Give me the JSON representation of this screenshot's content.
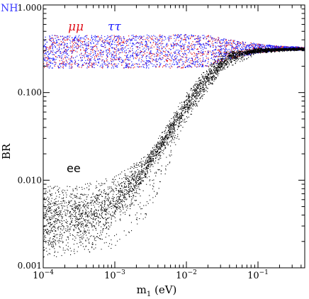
{
  "chart_data": {
    "type": "scatter",
    "corner_label": "NH",
    "corner_label_color": "#3a3aff",
    "xlabel_main": "m",
    "xlabel_sub": "1",
    "xlabel_unit": " (eV)",
    "ylabel": "BR",
    "x_scale": "log",
    "y_scale": "log",
    "xlim": [
      0.0001,
      0.45
    ],
    "ylim": [
      0.001,
      1.0
    ],
    "x_ticks": [
      {
        "value": 0.0001,
        "base": "10",
        "exp": "−4"
      },
      {
        "value": 0.001,
        "base": "10",
        "exp": "−3"
      },
      {
        "value": 0.01,
        "base": "10",
        "exp": "−2"
      },
      {
        "value": 0.1,
        "base": "10",
        "exp": "−1"
      }
    ],
    "y_ticks": [
      {
        "value": 0.001,
        "label": "0.001"
      },
      {
        "value": 0.01,
        "label": "0.010"
      },
      {
        "value": 0.1,
        "label": "0.100"
      },
      {
        "value": 1.0,
        "label": "1.000"
      }
    ],
    "series": [
      {
        "name": "μμ",
        "color": "#e0141e",
        "band_min": [
          [
            0.0001,
            0.19
          ],
          [
            0.001,
            0.19
          ],
          [
            0.01,
            0.19
          ],
          [
            0.02,
            0.2
          ],
          [
            0.05,
            0.25
          ],
          [
            0.1,
            0.28
          ],
          [
            0.2,
            0.3
          ],
          [
            0.45,
            0.305
          ]
        ],
        "band_max": [
          [
            0.0001,
            0.45
          ],
          [
            0.001,
            0.45
          ],
          [
            0.01,
            0.46
          ],
          [
            0.02,
            0.45
          ],
          [
            0.05,
            0.39
          ],
          [
            0.1,
            0.36
          ],
          [
            0.2,
            0.34
          ],
          [
            0.45,
            0.33
          ]
        ]
      },
      {
        "name": "ττ",
        "color": "#1a1aff",
        "band_min": [
          [
            0.0001,
            0.19
          ],
          [
            0.001,
            0.19
          ],
          [
            0.01,
            0.19
          ],
          [
            0.02,
            0.2
          ],
          [
            0.05,
            0.25
          ],
          [
            0.1,
            0.28
          ],
          [
            0.2,
            0.3
          ],
          [
            0.45,
            0.305
          ]
        ],
        "band_max": [
          [
            0.0001,
            0.45
          ],
          [
            0.001,
            0.45
          ],
          [
            0.01,
            0.46
          ],
          [
            0.02,
            0.45
          ],
          [
            0.05,
            0.39
          ],
          [
            0.1,
            0.36
          ],
          [
            0.2,
            0.34
          ],
          [
            0.45,
            0.33
          ]
        ]
      },
      {
        "name": "ee",
        "color": "#000000",
        "center": [
          [
            0.0001,
            0.0035
          ],
          [
            0.0003,
            0.0037
          ],
          [
            0.0007,
            0.0046
          ],
          [
            0.001,
            0.0058
          ],
          [
            0.002,
            0.01
          ],
          [
            0.004,
            0.022
          ],
          [
            0.007,
            0.045
          ],
          [
            0.01,
            0.07
          ],
          [
            0.02,
            0.15
          ],
          [
            0.04,
            0.25
          ],
          [
            0.07,
            0.29
          ],
          [
            0.1,
            0.3
          ],
          [
            0.2,
            0.31
          ],
          [
            0.45,
            0.315
          ]
        ],
        "spread_min": [
          [
            0.0001,
            0.0013
          ],
          [
            0.0003,
            0.0014
          ],
          [
            0.001,
            0.0017
          ],
          [
            0.003,
            0.004
          ],
          [
            0.01,
            0.045
          ],
          [
            0.03,
            0.17
          ],
          [
            0.1,
            0.28
          ],
          [
            0.45,
            0.305
          ]
        ],
        "spread_max": [
          [
            0.0001,
            0.0085
          ],
          [
            0.0003,
            0.0085
          ],
          [
            0.001,
            0.011
          ],
          [
            0.003,
            0.02
          ],
          [
            0.01,
            0.1
          ],
          [
            0.03,
            0.29
          ],
          [
            0.1,
            0.32
          ],
          [
            0.45,
            0.325
          ]
        ]
      }
    ]
  }
}
